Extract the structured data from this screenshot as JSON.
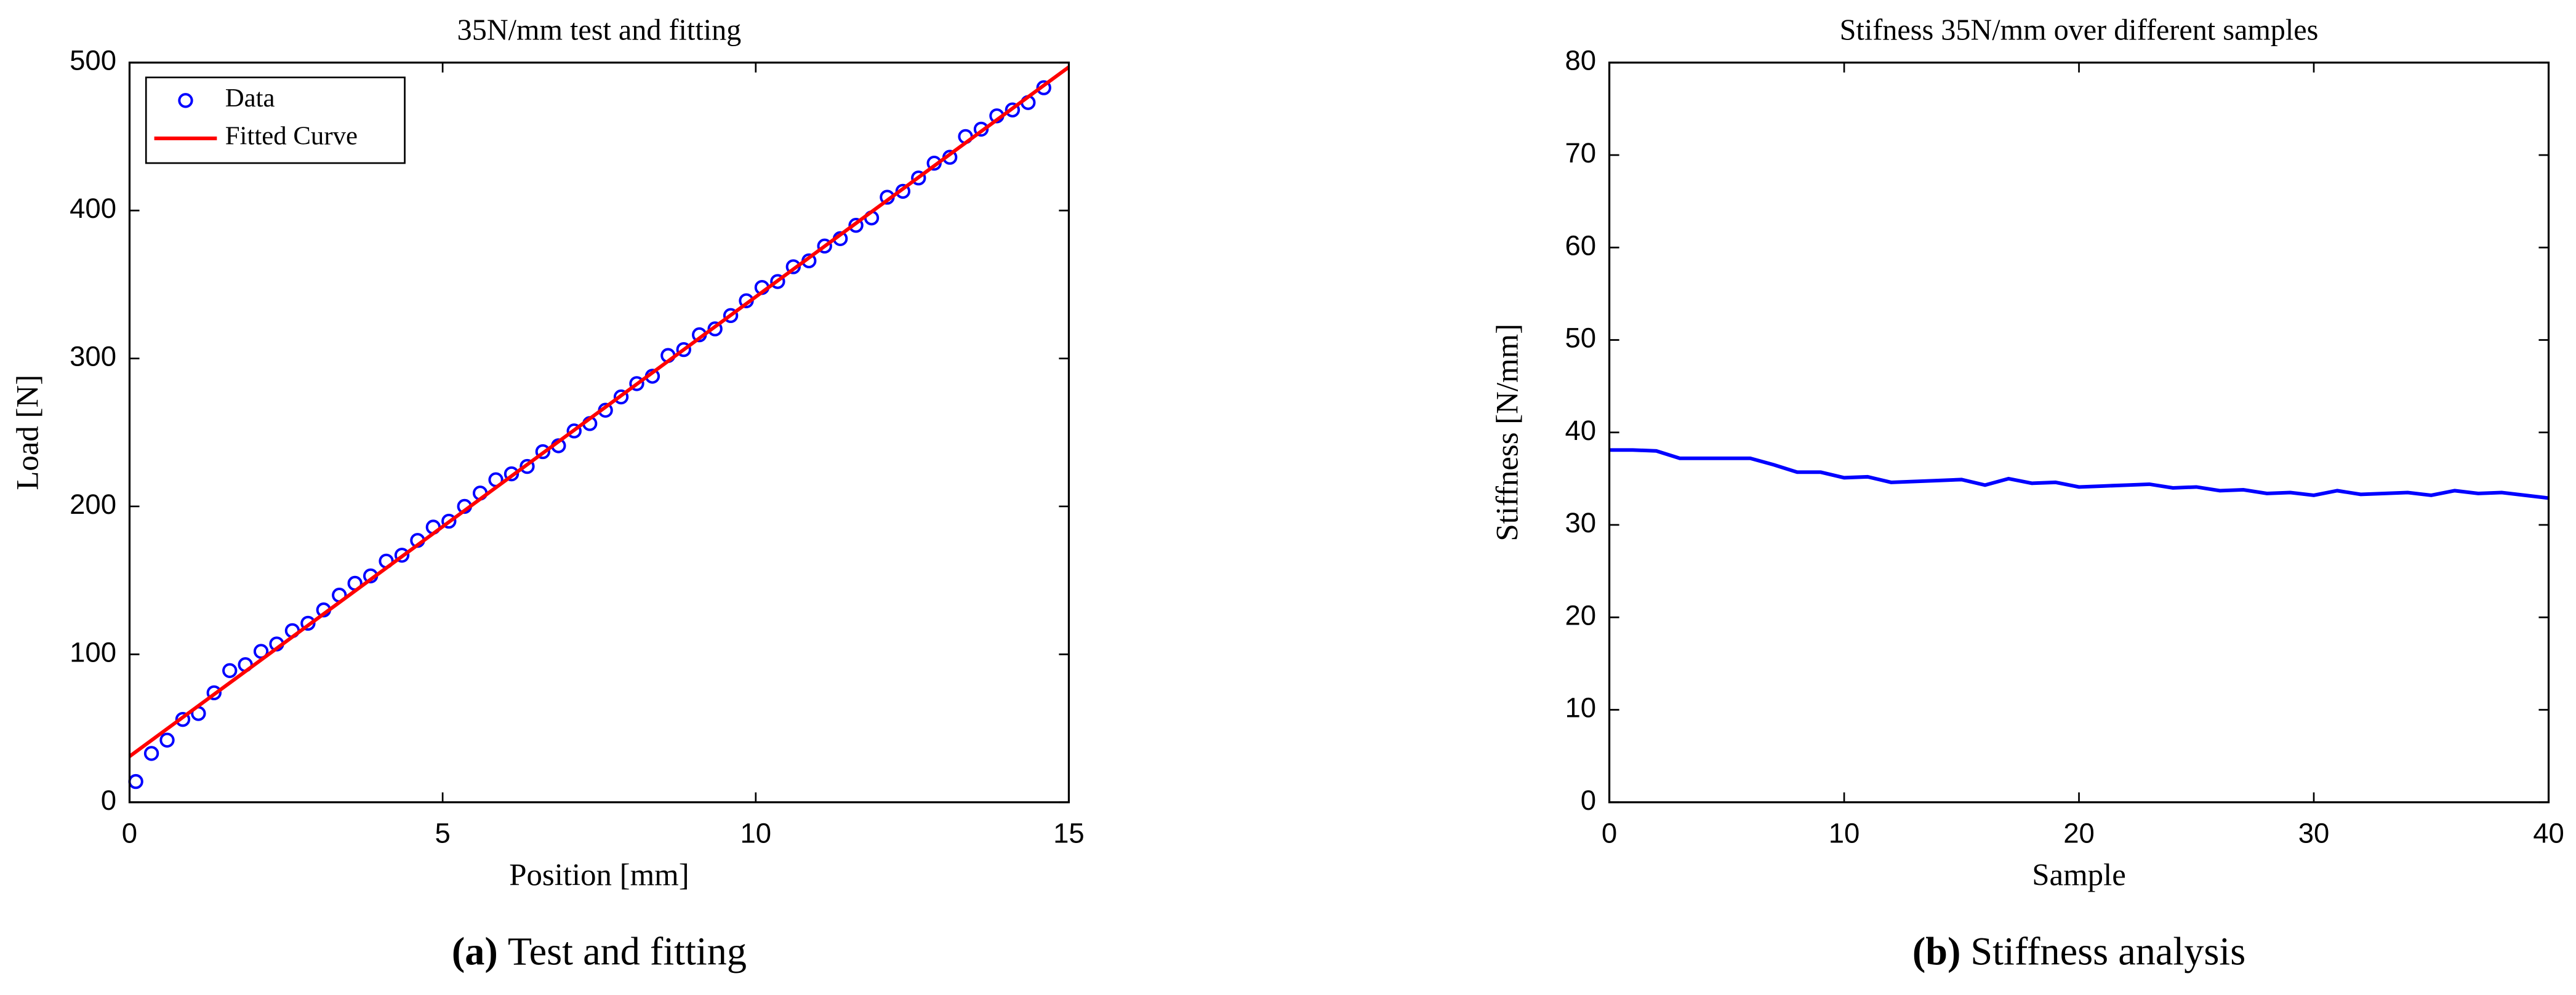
{
  "chart_data": [
    {
      "type": "scatter",
      "title": "35N/mm test and fitting",
      "xlabel": "Position [mm]",
      "ylabel": "Load [N]",
      "caption_tag": "(a)",
      "caption": "Test and fitting",
      "xlim": [
        0,
        15
      ],
      "xticks": [
        0,
        5,
        10,
        15
      ],
      "ylim": [
        0,
        500
      ],
      "yticks": [
        0,
        100,
        200,
        300,
        400,
        500
      ],
      "legend": "upper left",
      "series": [
        {
          "name": "Data",
          "type": "scatter",
          "color": "#0000ff",
          "x": [
            0.1,
            0.35,
            0.6,
            0.85,
            1.1,
            1.35,
            1.6,
            1.85,
            2.1,
            2.35,
            2.6,
            2.85,
            3.1,
            3.35,
            3.6,
            3.85,
            4.1,
            4.35,
            4.6,
            4.85,
            5.1,
            5.35,
            5.6,
            5.85,
            6.1,
            6.35,
            6.6,
            6.85,
            7.1,
            7.35,
            7.6,
            7.85,
            8.1,
            8.35,
            8.6,
            8.85,
            9.1,
            9.35,
            9.6,
            9.85,
            10.1,
            10.35,
            10.6,
            10.85,
            11.1,
            11.35,
            11.6,
            11.85,
            12.1,
            12.35,
            12.6,
            12.85,
            13.1,
            13.35,
            13.6,
            13.85,
            14.1,
            14.35,
            14.6
          ],
          "values": [
            14,
            33,
            42,
            56,
            60,
            74,
            89,
            93,
            102,
            107,
            116,
            121,
            130,
            140,
            148,
            153,
            163,
            167,
            177,
            186,
            190,
            200,
            209,
            218,
            222,
            227,
            237,
            241,
            251,
            256,
            265,
            274,
            283,
            288,
            302,
            306,
            316,
            320,
            329,
            339,
            348,
            352,
            362,
            366,
            376,
            381,
            390,
            395,
            409,
            413,
            422,
            432,
            436,
            450,
            455,
            464,
            468,
            473,
            483
          ]
        },
        {
          "name": "Fitted Curve",
          "type": "line",
          "color": "#ff0000",
          "x": [
            0,
            15
          ],
          "values": [
            31,
            497
          ]
        }
      ]
    },
    {
      "type": "line",
      "title": "Stifness 35N/mm over different samples",
      "xlabel": "Sample",
      "ylabel": "Stiffness [N/mm]",
      "caption_tag": "(b)",
      "caption": "Stiffness analysis",
      "xlim": [
        0,
        40
      ],
      "xticks": [
        0,
        10,
        20,
        30,
        40
      ],
      "ylim": [
        0,
        80
      ],
      "yticks": [
        0,
        10,
        20,
        30,
        40,
        50,
        60,
        70,
        80
      ],
      "series": [
        {
          "name": "Stiffness",
          "type": "line",
          "color": "#0000ff",
          "x": [
            0,
            1,
            2,
            3,
            4,
            5,
            6,
            7,
            8,
            9,
            10,
            11,
            12,
            13,
            14,
            15,
            16,
            17,
            18,
            19,
            20,
            21,
            22,
            23,
            24,
            25,
            26,
            27,
            28,
            29,
            30,
            31,
            32,
            33,
            34,
            35,
            36,
            37,
            38,
            39,
            40
          ],
          "values": [
            38.1,
            38.1,
            38,
            37.2,
            37.2,
            37.2,
            37.2,
            36.5,
            35.7,
            35.7,
            35.1,
            35.2,
            34.6,
            34.7,
            34.8,
            34.9,
            34.3,
            35,
            34.5,
            34.6,
            34.1,
            34.2,
            34.3,
            34.4,
            34,
            34.1,
            33.7,
            33.8,
            33.4,
            33.5,
            33.2,
            33.7,
            33.3,
            33.4,
            33.5,
            33.2,
            33.7,
            33.4,
            33.5,
            33.2,
            32.9
          ]
        }
      ]
    }
  ]
}
